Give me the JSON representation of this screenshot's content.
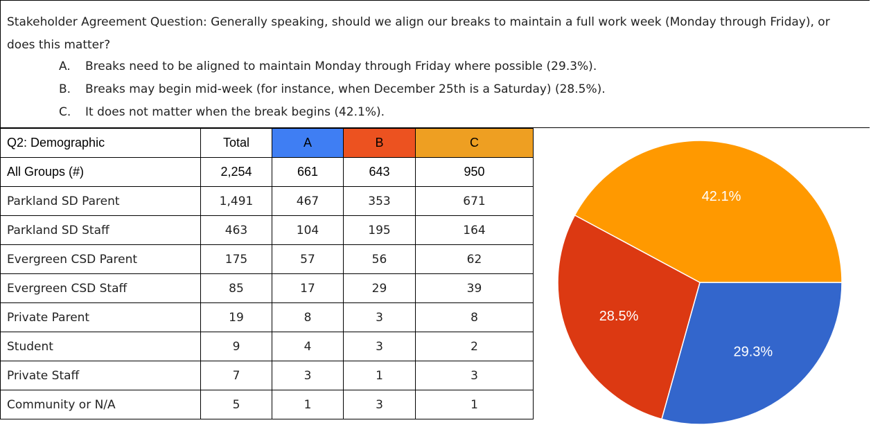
{
  "question": "Stakeholder Agreement Question: Generally speaking, should we align our breaks to maintain a full work week (Monday through Friday), or does this matter?",
  "options": [
    {
      "letter": "A.",
      "text": "Breaks need to be aligned to maintain Monday through Friday where possible (29.3%)."
    },
    {
      "letter": "B.",
      "text": "Breaks may begin mid-week (for instance, when December 25th is a Saturday) (28.5%)."
    },
    {
      "letter": "C.",
      "text": "It does not matter when the break begins (42.1%)."
    }
  ],
  "table": {
    "header": [
      "Q2: Demographic",
      "Total",
      "A",
      "B",
      "C"
    ],
    "header_colors": [
      null,
      null,
      "#3f7ef3",
      "#ec5220",
      "#ee9f22"
    ],
    "rows": [
      [
        "All Groups (#)",
        "2,254",
        "661",
        "643",
        "950"
      ],
      [
        "Parkland SD Parent",
        "1,491",
        "467",
        "353",
        "671"
      ],
      [
        "Parkland SD Staff",
        "463",
        "104",
        "195",
        "164"
      ],
      [
        "Evergreen CSD Parent",
        "175",
        "57",
        "56",
        "62"
      ],
      [
        "Evergreen CSD Staff",
        "85",
        "17",
        "29",
        "39"
      ],
      [
        "Private Parent",
        "19",
        "8",
        "3",
        "8"
      ],
      [
        "Student",
        "9",
        "4",
        "3",
        "2"
      ],
      [
        "Private Staff",
        "7",
        "3",
        "1",
        "3"
      ],
      [
        "Community or N/A",
        "5",
        "1",
        "3",
        "1"
      ]
    ]
  },
  "chart_data": {
    "type": "pie",
    "values": [
      29.3,
      28.5,
      42.1
    ],
    "value_labels": [
      "29.3%",
      "28.5%",
      "42.1%"
    ],
    "colors": [
      "#3366cc",
      "#dc3912",
      "#ff9900"
    ]
  }
}
